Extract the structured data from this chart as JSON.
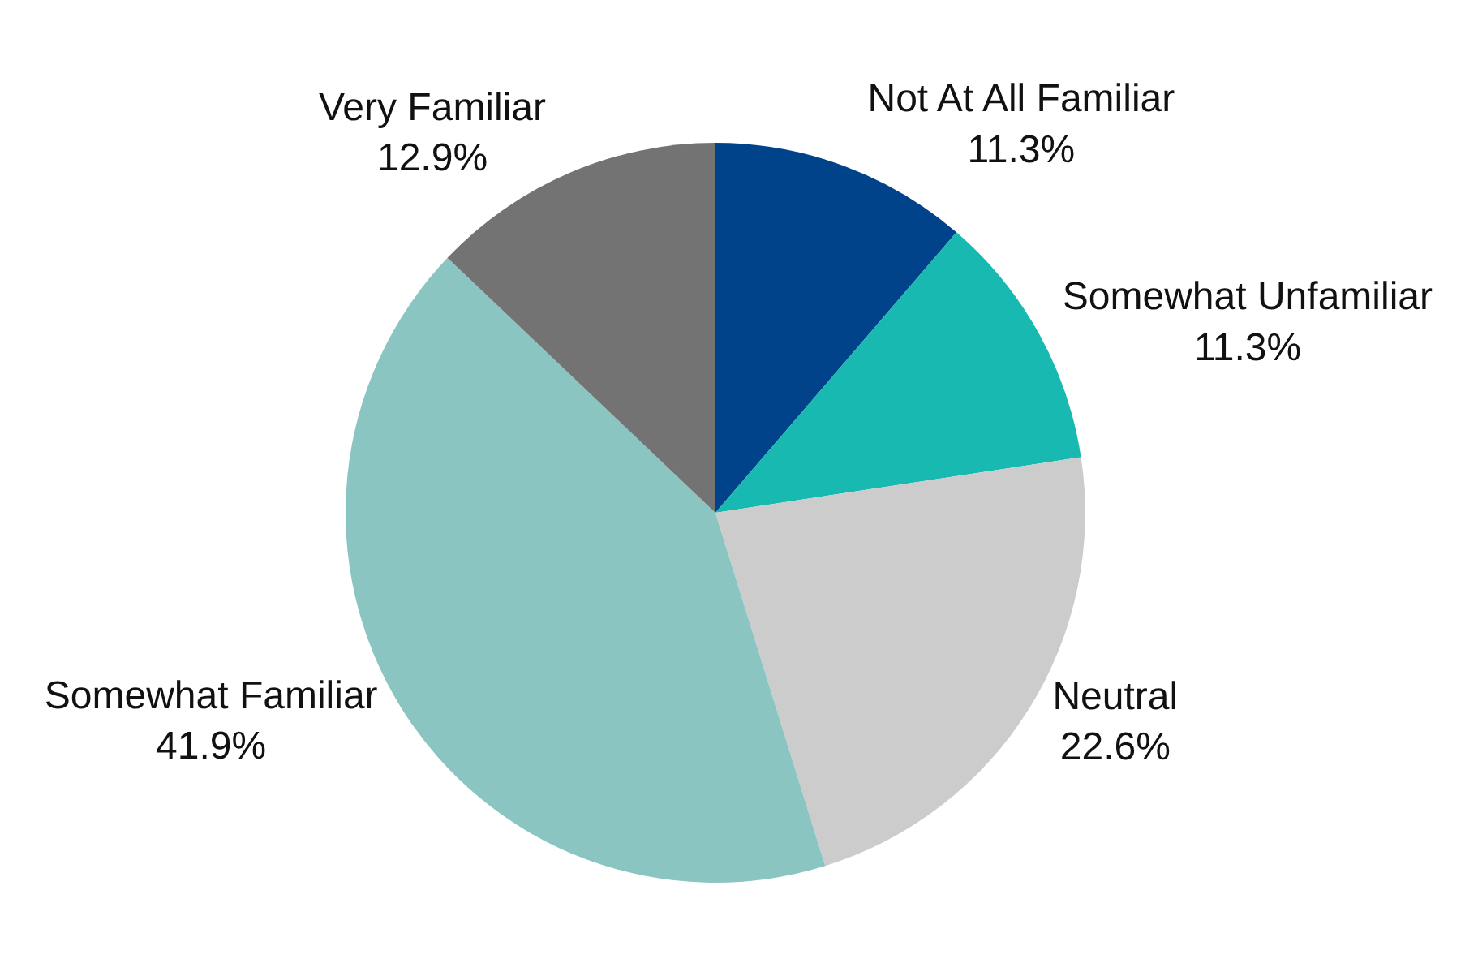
{
  "chart_data": {
    "type": "pie",
    "categories": [
      "Not At All Familiar",
      "Somewhat Unfamiliar",
      "Neutral",
      "Somewhat Familiar",
      "Very Familiar"
    ],
    "values": [
      11.3,
      11.3,
      22.6,
      41.9,
      12.9
    ],
    "colors": [
      "#00438a",
      "#17b9b0",
      "#cccccc",
      "#8ac5c2",
      "#737373"
    ],
    "value_labels": [
      "11.3%",
      "11.3%",
      "22.6%",
      "41.9%",
      "12.9%"
    ],
    "legend": false
  }
}
